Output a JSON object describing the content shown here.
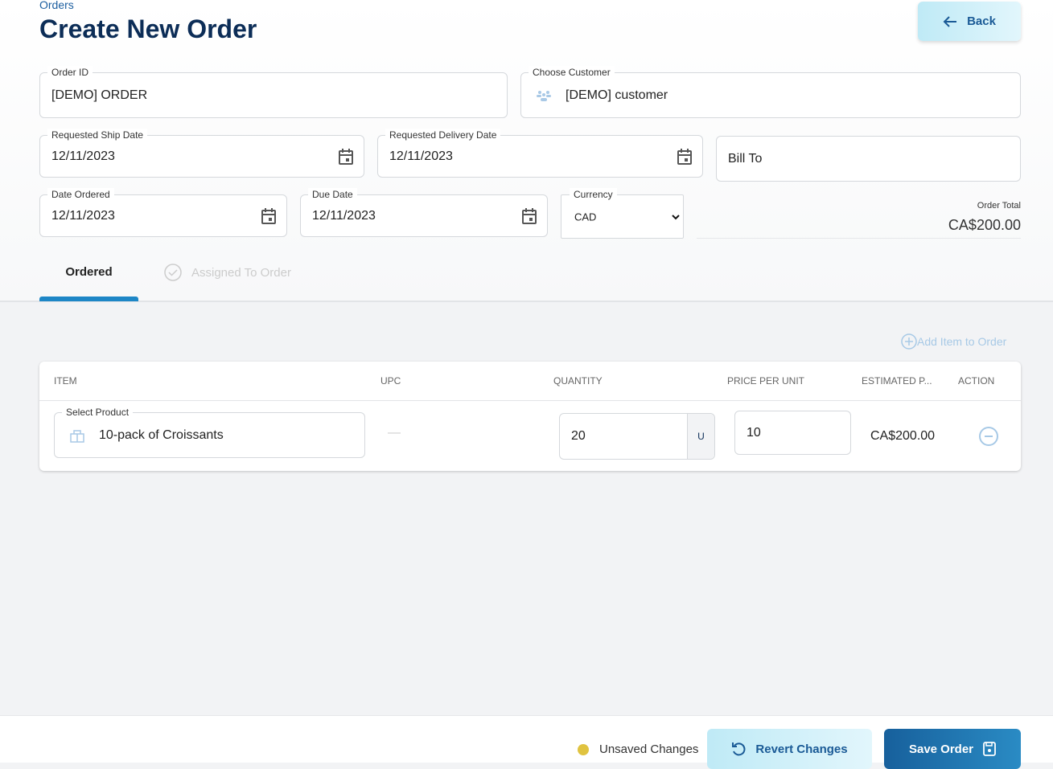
{
  "breadcrumb": "Orders",
  "title": "Create New Order",
  "back_label": "Back",
  "form": {
    "order_id": {
      "label": "Order ID",
      "value": "[DEMO] ORDER"
    },
    "customer": {
      "label": "Choose Customer",
      "value": "[DEMO] customer"
    },
    "ship_date": {
      "label": "Requested Ship Date",
      "value": "12/11/2023"
    },
    "delivery_date": {
      "label": "Requested Delivery Date",
      "value": "12/11/2023"
    },
    "bill_to": {
      "placeholder": "Bill To"
    },
    "date_ordered": {
      "label": "Date Ordered",
      "value": "12/11/2023"
    },
    "due_date": {
      "label": "Due Date",
      "value": "12/11/2023"
    },
    "currency": {
      "label": "Currency",
      "value": "CAD"
    },
    "order_total": {
      "label": "Order Total",
      "value": "CA$200.00"
    }
  },
  "tabs": [
    {
      "label": "Ordered",
      "active": true
    },
    {
      "label": "Assigned To Order",
      "active": false
    }
  ],
  "add_item_label": "Add Item to Order",
  "table": {
    "headers": [
      "ITEM",
      "UPC",
      "QUANTITY",
      "PRICE PER UNIT",
      "ESTIMATED P...",
      "ACTION"
    ],
    "rows": [
      {
        "product_label": "Select Product",
        "product": "10-pack of Croissants",
        "upc": "—",
        "quantity": "20",
        "unit": "U",
        "price": "10",
        "estimated": "CA$200.00"
      }
    ]
  },
  "footer": {
    "status": "Unsaved Changes",
    "status_color": "#e0c340",
    "revert_label": "Revert Changes",
    "save_label": "Save Order"
  }
}
